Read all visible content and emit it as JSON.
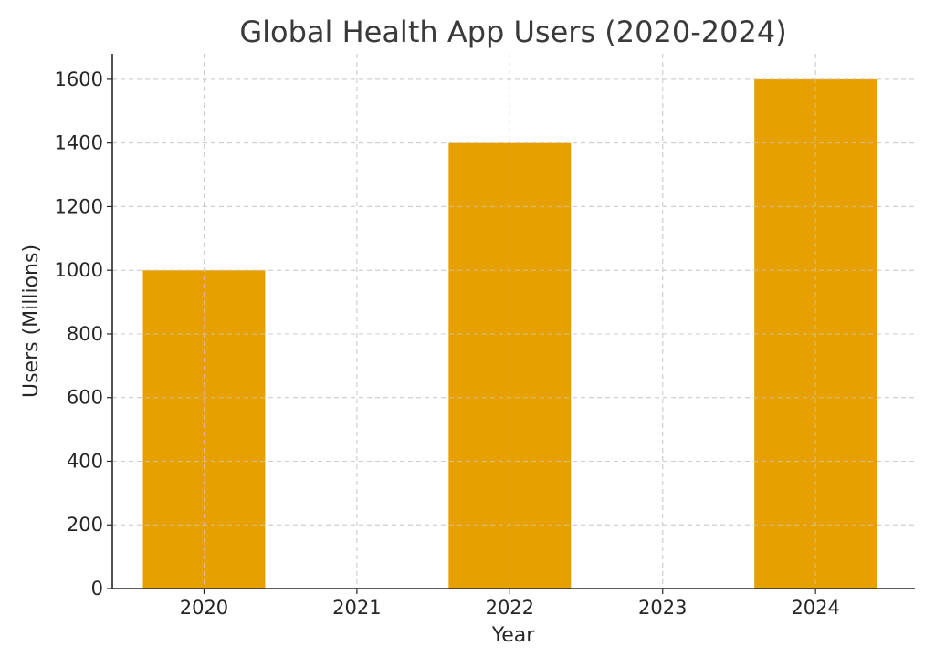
{
  "chart_data": {
    "type": "bar",
    "title": "Global Health App Users (2020-2024)",
    "xlabel": "Year",
    "ylabel": "Users (Millions)",
    "x": [
      2020,
      2021,
      2022,
      2023,
      2024
    ],
    "x_tick_labels": [
      "2020",
      "2021",
      "2022",
      "2023",
      "2024"
    ],
    "series": [
      {
        "x": [
          2020,
          2022,
          2024
        ],
        "values": [
          1000,
          1400,
          1600
        ],
        "color": "#E6A000"
      }
    ],
    "ylim": [
      0,
      1680
    ],
    "xlim": [
      2019.4,
      2024.65
    ],
    "y_ticks": [
      0,
      200,
      400,
      600,
      800,
      1000,
      1200,
      1400,
      1600
    ],
    "y_tick_labels": [
      "0",
      "200",
      "400",
      "600",
      "800",
      "1000",
      "1200",
      "1400",
      "1600"
    ],
    "grid": true,
    "grid_style": "dashed",
    "grid_color": "#cccccc",
    "axis_color": "#262626"
  }
}
